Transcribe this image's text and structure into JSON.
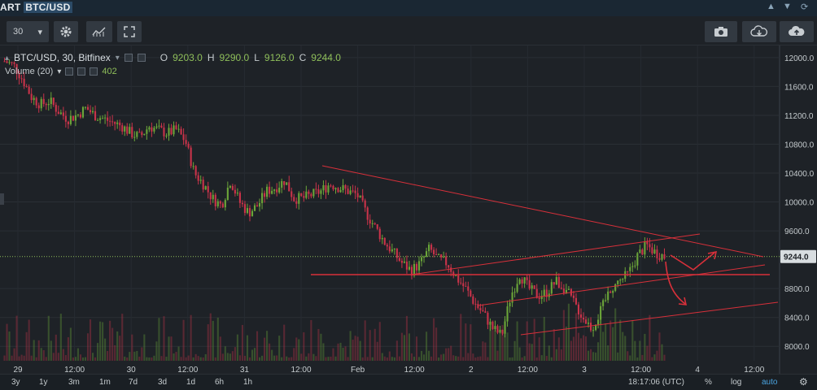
{
  "window": {
    "title_prefix": "ART",
    "title_pair": "BTC/USD",
    "up_icon": "triangle-up-icon",
    "down_icon": "triangle-down-icon",
    "refresh_icon": "refresh-icon"
  },
  "toolbar": {
    "interval": "30",
    "buttons": [
      "gear-icon",
      "indicators-icon",
      "fullscreen-icon"
    ],
    "right_buttons": [
      "camera-icon",
      "cloud-download-icon",
      "cloud-upload-icon"
    ]
  },
  "legend": {
    "symbol": "BTC/USD, 30, Bitfinex",
    "open_label": "O",
    "open": "9203.0",
    "high_label": "H",
    "high": "9290.0",
    "low_label": "L",
    "low": "9126.0",
    "close_label": "C",
    "close": "9244.0",
    "volume_label": "Volume (20)",
    "volume_value": "402"
  },
  "price_axis": {
    "ticks": [
      "12000.0",
      "11600.0",
      "11200.0",
      "10800.0",
      "10400.0",
      "10000.0",
      "9600.0",
      "9244.0",
      "8800.0",
      "8400.0",
      "8000.0"
    ],
    "last_price": "9244.0"
  },
  "time_axis": {
    "labels": [
      "29",
      "12:00",
      "30",
      "12:00",
      "31",
      "12:00",
      "Feb",
      "12:00",
      "2",
      "12:00",
      "3",
      "12:00",
      "4",
      "12:00"
    ]
  },
  "ranges": [
    "3y",
    "1y",
    "3m",
    "1m",
    "7d",
    "3d",
    "1d",
    "6h",
    "1h"
  ],
  "status": {
    "clock": "18:17:06 (UTC)",
    "percent": "%",
    "log": "log",
    "auto": "auto"
  },
  "colors": {
    "up": "#6ba539",
    "down": "#c9334a",
    "trend": "#d8303a",
    "bg": "#1e2227",
    "accent": "#4aa3df"
  },
  "chart_data": {
    "type": "candlestick",
    "title": "BTC/USD, 30, Bitfinex",
    "ylim": [
      7800,
      12100
    ],
    "price_path": [
      11950,
      11900,
      11700,
      11450,
      11350,
      11400,
      11250,
      11150,
      11200,
      11300,
      11200,
      11150,
      11100,
      11050,
      10950,
      10900,
      11050,
      11000,
      10950,
      11000,
      10850,
      10400,
      10250,
      10050,
      9950,
      10300,
      10000,
      9850,
      9950,
      10150,
      10200,
      10300,
      10050,
      10050,
      10100,
      10150,
      10250,
      10200,
      10150,
      10100,
      9850,
      9650,
      9450,
      9300,
      9150,
      9050,
      9150,
      9350,
      9200,
      9150,
      8950,
      8800,
      8600,
      8450,
      8250,
      8150,
      8700,
      9000,
      8800,
      8700,
      8750,
      8900,
      8800,
      8600,
      8400,
      8250,
      8500,
      8800,
      8900,
      9000,
      9250,
      9400,
      9300,
      9244
    ],
    "volume_value": 402
  }
}
